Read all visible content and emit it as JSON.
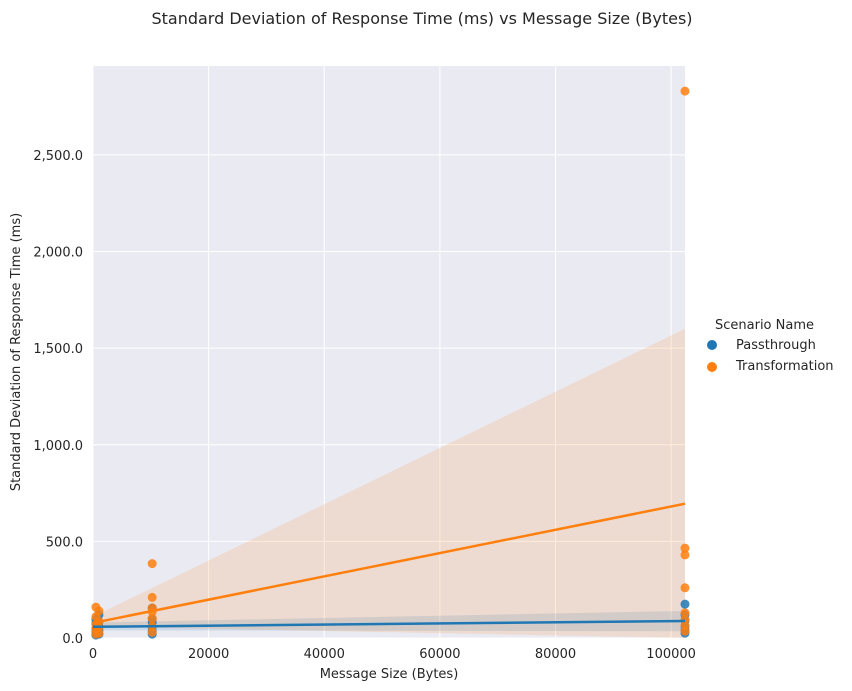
{
  "chart_data": {
    "type": "scatter",
    "title": "Standard Deviation of Response Time (ms) vs Message Size (Bytes)",
    "xlabel": "Message Size (Bytes)",
    "ylabel": "Standard Deviation of Response Time (ms)",
    "xlim": [
      0,
      102400
    ],
    "ylim": [
      0,
      2960
    ],
    "x_ticks": [
      0,
      20000,
      40000,
      60000,
      80000,
      100000
    ],
    "x_tick_labels": [
      "0",
      "20000",
      "40000",
      "60000",
      "80000",
      "100000"
    ],
    "y_ticks": [
      0,
      500,
      1000,
      1500,
      2000,
      2500
    ],
    "y_tick_labels": [
      "0.0",
      "500.0",
      "1,000.0",
      "1,500.0",
      "2,000.0",
      "2,500.0"
    ],
    "grid": true,
    "legend": {
      "title": "Scenario Name",
      "placement": "right"
    },
    "series": [
      {
        "name": "Passthrough",
        "color": "#1f77b4",
        "points": [
          [
            500,
            15
          ],
          [
            500,
            30
          ],
          [
            500,
            50
          ],
          [
            500,
            75
          ],
          [
            500,
            95
          ],
          [
            1024,
            20
          ],
          [
            1024,
            40
          ],
          [
            1024,
            60
          ],
          [
            1024,
            85
          ],
          [
            1024,
            120
          ],
          [
            10240,
            20
          ],
          [
            10240,
            35
          ],
          [
            10240,
            55
          ],
          [
            10240,
            80
          ],
          [
            10240,
            100
          ],
          [
            10240,
            155
          ],
          [
            102400,
            25
          ],
          [
            102400,
            40
          ],
          [
            102400,
            60
          ],
          [
            102400,
            90
          ],
          [
            102400,
            120
          ],
          [
            102400,
            175
          ]
        ],
        "fit": {
          "x": [
            0,
            102400
          ],
          "y": [
            58,
            88
          ]
        },
        "ci": {
          "x": [
            0,
            102400
          ],
          "lower": [
            40,
            35
          ],
          "upper": [
            80,
            140
          ]
        }
      },
      {
        "name": "Transformation",
        "color": "#ff7f0e",
        "points": [
          [
            500,
            20
          ],
          [
            500,
            45
          ],
          [
            500,
            70
          ],
          [
            500,
            110
          ],
          [
            500,
            160
          ],
          [
            1024,
            25
          ],
          [
            1024,
            55
          ],
          [
            1024,
            85
          ],
          [
            1024,
            140
          ],
          [
            10240,
            30
          ],
          [
            10240,
            60
          ],
          [
            10240,
            100
          ],
          [
            10240,
            135
          ],
          [
            10240,
            155
          ],
          [
            10240,
            210
          ],
          [
            10240,
            385
          ],
          [
            102400,
            35
          ],
          [
            102400,
            65
          ],
          [
            102400,
            95
          ],
          [
            102400,
            130
          ],
          [
            102400,
            260
          ],
          [
            102400,
            430
          ],
          [
            102400,
            465
          ],
          [
            102400,
            2830
          ]
        ],
        "fit": {
          "x": [
            0,
            102400
          ],
          "y": [
            78,
            695
          ]
        },
        "ci": {
          "x": [
            0,
            102400
          ],
          "lower": [
            60,
            0
          ],
          "upper": [
            110,
            1600
          ]
        }
      }
    ]
  }
}
